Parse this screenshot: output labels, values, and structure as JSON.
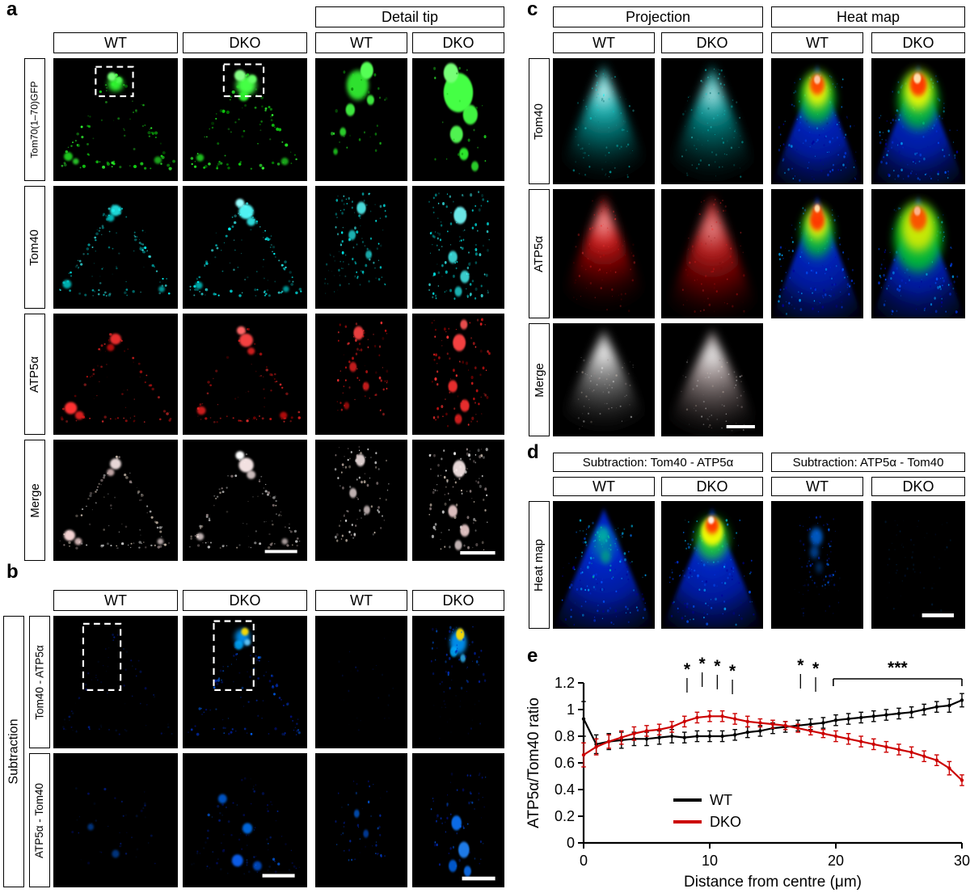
{
  "labels": {
    "wt": "WT",
    "dko": "DKO"
  },
  "panels": {
    "a": {
      "label": "a",
      "detail_header": "Detail tip",
      "rows": [
        "Tom70(1–70)GFP",
        "Tom40",
        "ATP5α",
        "Merge"
      ]
    },
    "b": {
      "label": "b",
      "side": "Subtraction",
      "rows": [
        "Tom40 - ATP5α",
        "ATP5α - Tom40"
      ]
    },
    "c": {
      "label": "c",
      "groups": [
        "Projection",
        "Heat map"
      ],
      "rows": [
        "Tom40",
        "ATP5α",
        "Merge"
      ]
    },
    "d": {
      "label": "d",
      "groups": [
        "Subtraction: Tom40 - ATP5α",
        "Subtraction: ATP5α - Tom40"
      ],
      "row": "Heat map"
    },
    "e": {
      "label": "e"
    }
  },
  "chart_data": {
    "type": "line",
    "title": "",
    "xlabel": "Distance from centre (μm)",
    "ylabel": "ATP5α/Tom40 ratio",
    "xlim": [
      0,
      30
    ],
    "ylim": [
      0,
      1.2
    ],
    "xticks": [
      0,
      10,
      20,
      30
    ],
    "yticks": [
      0,
      0.2,
      0.4,
      0.6,
      0.8,
      1,
      1.2
    ],
    "grid": false,
    "legend_position": "inside-bottom-left",
    "x": [
      0,
      1,
      2,
      3,
      4,
      5,
      6,
      7,
      8,
      9,
      10,
      11,
      12,
      13,
      14,
      15,
      16,
      17,
      18,
      19,
      20,
      21,
      22,
      23,
      24,
      25,
      26,
      27,
      28,
      29,
      30
    ],
    "series": [
      {
        "name": "WT",
        "color": "#000000",
        "values": [
          0.93,
          0.74,
          0.76,
          0.77,
          0.78,
          0.78,
          0.79,
          0.8,
          0.79,
          0.8,
          0.8,
          0.8,
          0.81,
          0.83,
          0.84,
          0.86,
          0.87,
          0.88,
          0.89,
          0.9,
          0.92,
          0.93,
          0.94,
          0.95,
          0.96,
          0.97,
          0.98,
          1.0,
          1.02,
          1.03,
          1.07
        ],
        "errors": [
          0.13,
          0.07,
          0.06,
          0.06,
          0.05,
          0.05,
          0.05,
          0.05,
          0.04,
          0.04,
          0.04,
          0.04,
          0.04,
          0.04,
          0.04,
          0.04,
          0.04,
          0.04,
          0.04,
          0.04,
          0.04,
          0.04,
          0.04,
          0.04,
          0.04,
          0.04,
          0.04,
          0.04,
          0.04,
          0.05,
          0.05
        ]
      },
      {
        "name": "DKO",
        "color": "#cc0000",
        "values": [
          0.66,
          0.72,
          0.76,
          0.79,
          0.82,
          0.84,
          0.85,
          0.87,
          0.91,
          0.94,
          0.95,
          0.95,
          0.93,
          0.91,
          0.9,
          0.89,
          0.88,
          0.86,
          0.84,
          0.82,
          0.8,
          0.78,
          0.76,
          0.74,
          0.72,
          0.7,
          0.68,
          0.65,
          0.62,
          0.56,
          0.47
        ],
        "errors": [
          0.09,
          0.06,
          0.05,
          0.05,
          0.05,
          0.04,
          0.04,
          0.04,
          0.04,
          0.04,
          0.04,
          0.04,
          0.04,
          0.04,
          0.03,
          0.03,
          0.03,
          0.03,
          0.03,
          0.03,
          0.04,
          0.04,
          0.04,
          0.04,
          0.04,
          0.04,
          0.04,
          0.04,
          0.04,
          0.05,
          0.04
        ]
      }
    ],
    "significance": [
      {
        "type": "asterisks",
        "label": "*",
        "x": [
          8.2,
          9.4,
          10.6,
          11.8
        ],
        "dy": [
          7,
          0,
          3,
          9
        ]
      },
      {
        "type": "asterisks",
        "label": "*",
        "x": [
          17.2,
          18.4
        ],
        "dy": [
          2,
          6
        ]
      },
      {
        "type": "bracket",
        "label": "***",
        "x1": 19.8,
        "x2": 30
      }
    ]
  }
}
